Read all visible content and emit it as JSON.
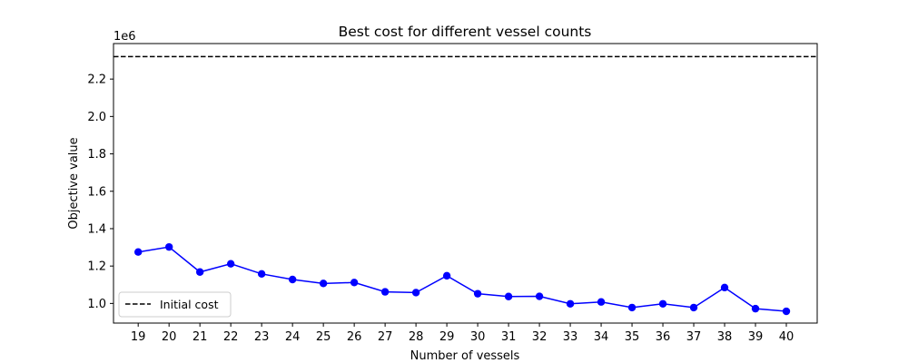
{
  "chart_data": {
    "type": "line",
    "title": "Best cost for different vessel counts",
    "xlabel": "Number of vessels",
    "ylabel": "Objective value",
    "y_offset_label": "1e6",
    "x": [
      19,
      20,
      21,
      22,
      23,
      24,
      25,
      26,
      27,
      28,
      29,
      30,
      31,
      32,
      33,
      34,
      35,
      36,
      37,
      38,
      39,
      40
    ],
    "x_tick_labels": [
      "19",
      "20",
      "21",
      "22",
      "23",
      "24",
      "25",
      "26",
      "27",
      "28",
      "29",
      "30",
      "31",
      "32",
      "33",
      "34",
      "35",
      "36",
      "37",
      "38",
      "39",
      "40"
    ],
    "xlim": [
      18.2,
      41.0
    ],
    "ylim": [
      0.895,
      2.39
    ],
    "y_ticks": [
      1.0,
      1.2,
      1.4,
      1.6,
      1.8,
      2.0,
      2.2
    ],
    "y_tick_labels": [
      "1.0",
      "1.2",
      "1.4",
      "1.6",
      "1.8",
      "2.0",
      "2.2"
    ],
    "series": [
      {
        "values": [
          1.275,
          1.302,
          1.168,
          1.212,
          1.158,
          1.128,
          1.107,
          1.112,
          1.062,
          1.058,
          1.148,
          1.052,
          1.037,
          1.038,
          0.998,
          1.008,
          0.978,
          0.998,
          0.978,
          1.085,
          0.972,
          0.958
        ],
        "color": "#0000ff",
        "style": "solid line with circle markers"
      }
    ],
    "reference_lines": [
      {
        "name": "Initial cost",
        "y": 2.32,
        "color": "#000000",
        "style": "dashed"
      }
    ],
    "legend": {
      "placement": "lower-left",
      "entries": [
        "Initial cost"
      ]
    },
    "grid": false
  }
}
